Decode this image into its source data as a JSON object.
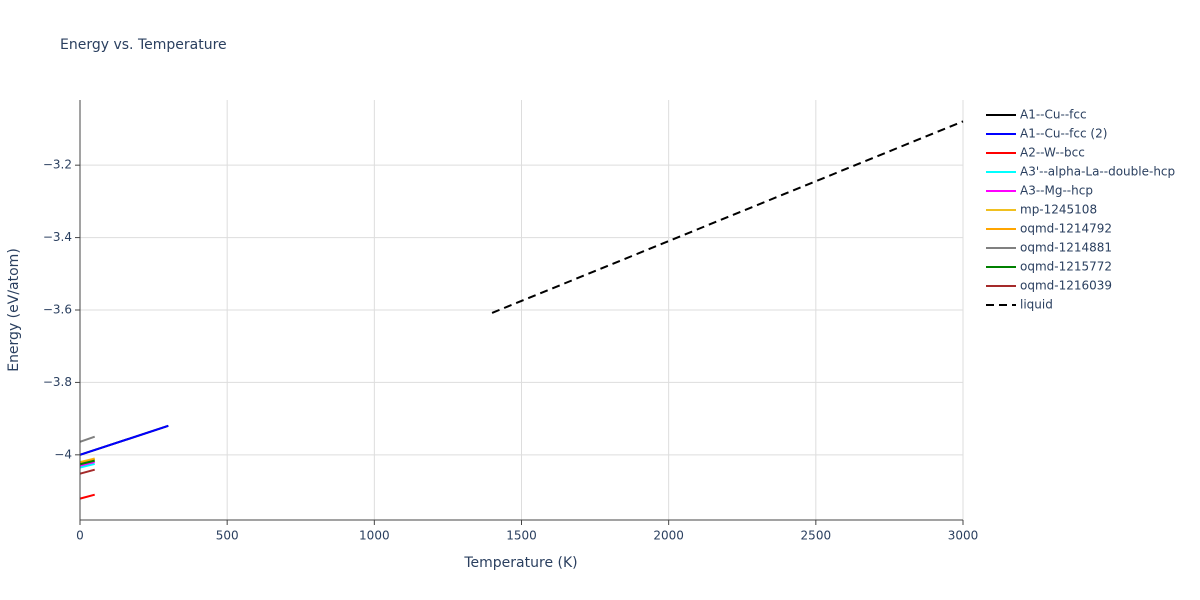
{
  "chart_data": {
    "type": "line",
    "title": "Energy vs. Temperature",
    "x_label": "Temperature (K)",
    "y_label": "Energy (eV/atom)",
    "xlim": [
      0,
      3000
    ],
    "ylim": [
      -4.18,
      -3.02
    ],
    "xticks": [
      0,
      500,
      1000,
      1500,
      2000,
      2500,
      3000
    ],
    "yticks": [
      {
        "value": -4,
        "label": "−4"
      },
      {
        "value": -3.8,
        "label": "−3.8"
      },
      {
        "value": -3.6,
        "label": "−3.6"
      },
      {
        "value": -3.4,
        "label": "−3.4"
      },
      {
        "value": -3.2,
        "label": "−3.2"
      }
    ],
    "grid": true,
    "legend": "right",
    "series": [
      {
        "name": "A1--Cu--fcc",
        "color": "#000000",
        "x": [
          0,
          300
        ],
        "values": [
          -4.0,
          -3.92
        ]
      },
      {
        "name": "A1--Cu--fcc (2)",
        "color": "#0000ff",
        "x": [
          0,
          300
        ],
        "values": [
          -4.0,
          -3.92
        ]
      },
      {
        "name": "A2--W--bcc",
        "color": "#ff0000",
        "x": [
          0,
          50
        ],
        "values": [
          -4.121,
          -4.11
        ]
      },
      {
        "name": "A3'--alpha-La--double-hcp",
        "color": "#00ffff",
        "x": [
          0,
          50
        ],
        "values": [
          -4.035,
          -4.025
        ]
      },
      {
        "name": "A3--Mg--hcp",
        "color": "#ff00ff",
        "x": [
          0,
          50
        ],
        "values": [
          -4.03,
          -4.02
        ]
      },
      {
        "name": "mp-1245108",
        "color": "#f0c020",
        "x": [
          0,
          50
        ],
        "values": [
          -4.02,
          -4.01
        ]
      },
      {
        "name": "oqmd-1214792",
        "color": "#ffa500",
        "x": [
          0,
          50
        ],
        "values": [
          -4.022,
          -4.012
        ]
      },
      {
        "name": "oqmd-1214881",
        "color": "#808080",
        "x": [
          0,
          50
        ],
        "values": [
          -3.964,
          -3.95
        ]
      },
      {
        "name": "oqmd-1215772",
        "color": "#008000",
        "x": [
          0,
          50
        ],
        "values": [
          -4.026,
          -4.016
        ]
      },
      {
        "name": "oqmd-1216039",
        "color": "#a52a2a",
        "x": [
          0,
          50
        ],
        "values": [
          -4.052,
          -4.041
        ]
      },
      {
        "name": "liquid",
        "color": "#000000",
        "dash": "dash",
        "x": [
          1400,
          3000
        ],
        "values": [
          -3.608,
          -3.079
        ]
      }
    ]
  }
}
